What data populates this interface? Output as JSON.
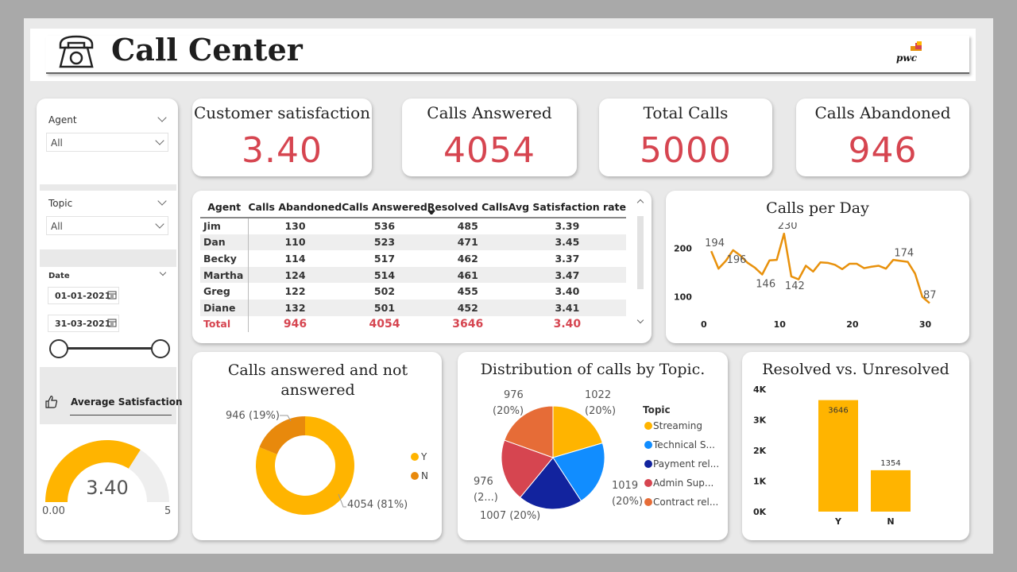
{
  "header": {
    "title": "Call Center",
    "brand": "pwc"
  },
  "kpis": [
    {
      "title": "Customer satisfaction",
      "value": "3.40"
    },
    {
      "title": "Calls Answered",
      "value": "4054"
    },
    {
      "title": "Total Calls",
      "value": "5000"
    },
    {
      "title": "Calls Abandoned",
      "value": "946"
    }
  ],
  "filters": {
    "agent": {
      "label": "Agent",
      "value": "All"
    },
    "topic": {
      "label": "Topic",
      "value": "All"
    },
    "date": {
      "label": "Date",
      "start": "01-01-2021",
      "end": "31-03-2021"
    }
  },
  "gauge": {
    "title": "Average Satisfaction",
    "value": "3.40",
    "min": "0.00",
    "max": "5",
    "fraction": 0.68,
    "color": "#ffb400"
  },
  "table": {
    "columns": [
      "Agent",
      "Calls Abandoned",
      "Calls Answered",
      "Resolved Calls",
      "Avg Satisfaction rate"
    ],
    "rows": [
      [
        "Jim",
        "130",
        "536",
        "485",
        "3.39"
      ],
      [
        "Dan",
        "110",
        "523",
        "471",
        "3.45"
      ],
      [
        "Becky",
        "114",
        "517",
        "462",
        "3.37"
      ],
      [
        "Martha",
        "124",
        "514",
        "461",
        "3.47"
      ],
      [
        "Greg",
        "122",
        "502",
        "455",
        "3.40"
      ],
      [
        "Diane",
        "132",
        "501",
        "452",
        "3.41"
      ]
    ],
    "total": [
      "Total",
      "946",
      "4054",
      "3646",
      "3.40"
    ]
  },
  "chart_data": [
    {
      "type": "line",
      "title": "Calls per Day",
      "x": [
        1,
        2,
        3,
        4,
        5,
        6,
        7,
        8,
        9,
        10,
        11,
        12,
        13,
        14,
        15,
        16,
        17,
        18,
        19,
        20,
        21,
        22,
        23,
        24,
        25,
        26,
        27,
        28,
        29,
        30,
        31
      ],
      "values": [
        194,
        158,
        174,
        196,
        185,
        170,
        160,
        146,
        175,
        176,
        230,
        142,
        136,
        164,
        152,
        171,
        170,
        166,
        157,
        168,
        168,
        159,
        162,
        164,
        158,
        176,
        174,
        172,
        148,
        100,
        87
      ],
      "point_labels": [
        {
          "x": 1,
          "text": "194"
        },
        {
          "x": 4,
          "text": "196"
        },
        {
          "x": 8,
          "text": "146"
        },
        {
          "x": 11,
          "text": "230"
        },
        {
          "x": 12,
          "text": "142"
        },
        {
          "x": 27,
          "text": "174"
        },
        {
          "x": 31,
          "text": "87"
        }
      ],
      "xticks": [
        "0",
        "10",
        "20",
        "30"
      ],
      "yticks": [
        "100",
        "200"
      ],
      "xlim": [
        0,
        31
      ],
      "ylim": [
        70,
        240
      ],
      "color": "#e8910c"
    },
    {
      "type": "pie",
      "title": "Calls answered and not answered",
      "donut": true,
      "slices": [
        {
          "name": "Y",
          "value": 4054,
          "label": "4054 (81%)",
          "color": "#ffb400"
        },
        {
          "name": "N",
          "value": 946,
          "label": "946 (19%)",
          "color": "#e8890c"
        }
      ],
      "legend": "right"
    },
    {
      "type": "pie",
      "title": "Distribution of calls by Topic.",
      "legend_title": "Topic",
      "slices": [
        {
          "name": "Streaming",
          "value": 1022,
          "label_top": "1022",
          "label_bottom": "(20%)",
          "color": "#ffb400"
        },
        {
          "name": "Technical S...",
          "value": 1019,
          "label_top": "1019",
          "label_bottom": "(20%)",
          "color": "#118dff"
        },
        {
          "name": "Payment rel...",
          "value": 1007,
          "label_top": "1007 (20%)",
          "label_bottom": "",
          "color": "#12239e"
        },
        {
          "name": "Admin Sup...",
          "value": 976,
          "label_top": "976",
          "label_bottom": "(2...)",
          "color": "#d64550"
        },
        {
          "name": "Contract rel...",
          "value": 976,
          "label_top": "976",
          "label_bottom": "(20%)",
          "color": "#e66c37"
        }
      ],
      "legend": "right"
    },
    {
      "type": "bar",
      "title": "Resolved vs. Unresolved",
      "categories": [
        "Y",
        "N"
      ],
      "values": [
        3646,
        1354
      ],
      "ylim": [
        0,
        4000
      ],
      "yticks": [
        "0K",
        "1K",
        "2K",
        "3K",
        "4K"
      ],
      "color": "#ffb400"
    }
  ]
}
